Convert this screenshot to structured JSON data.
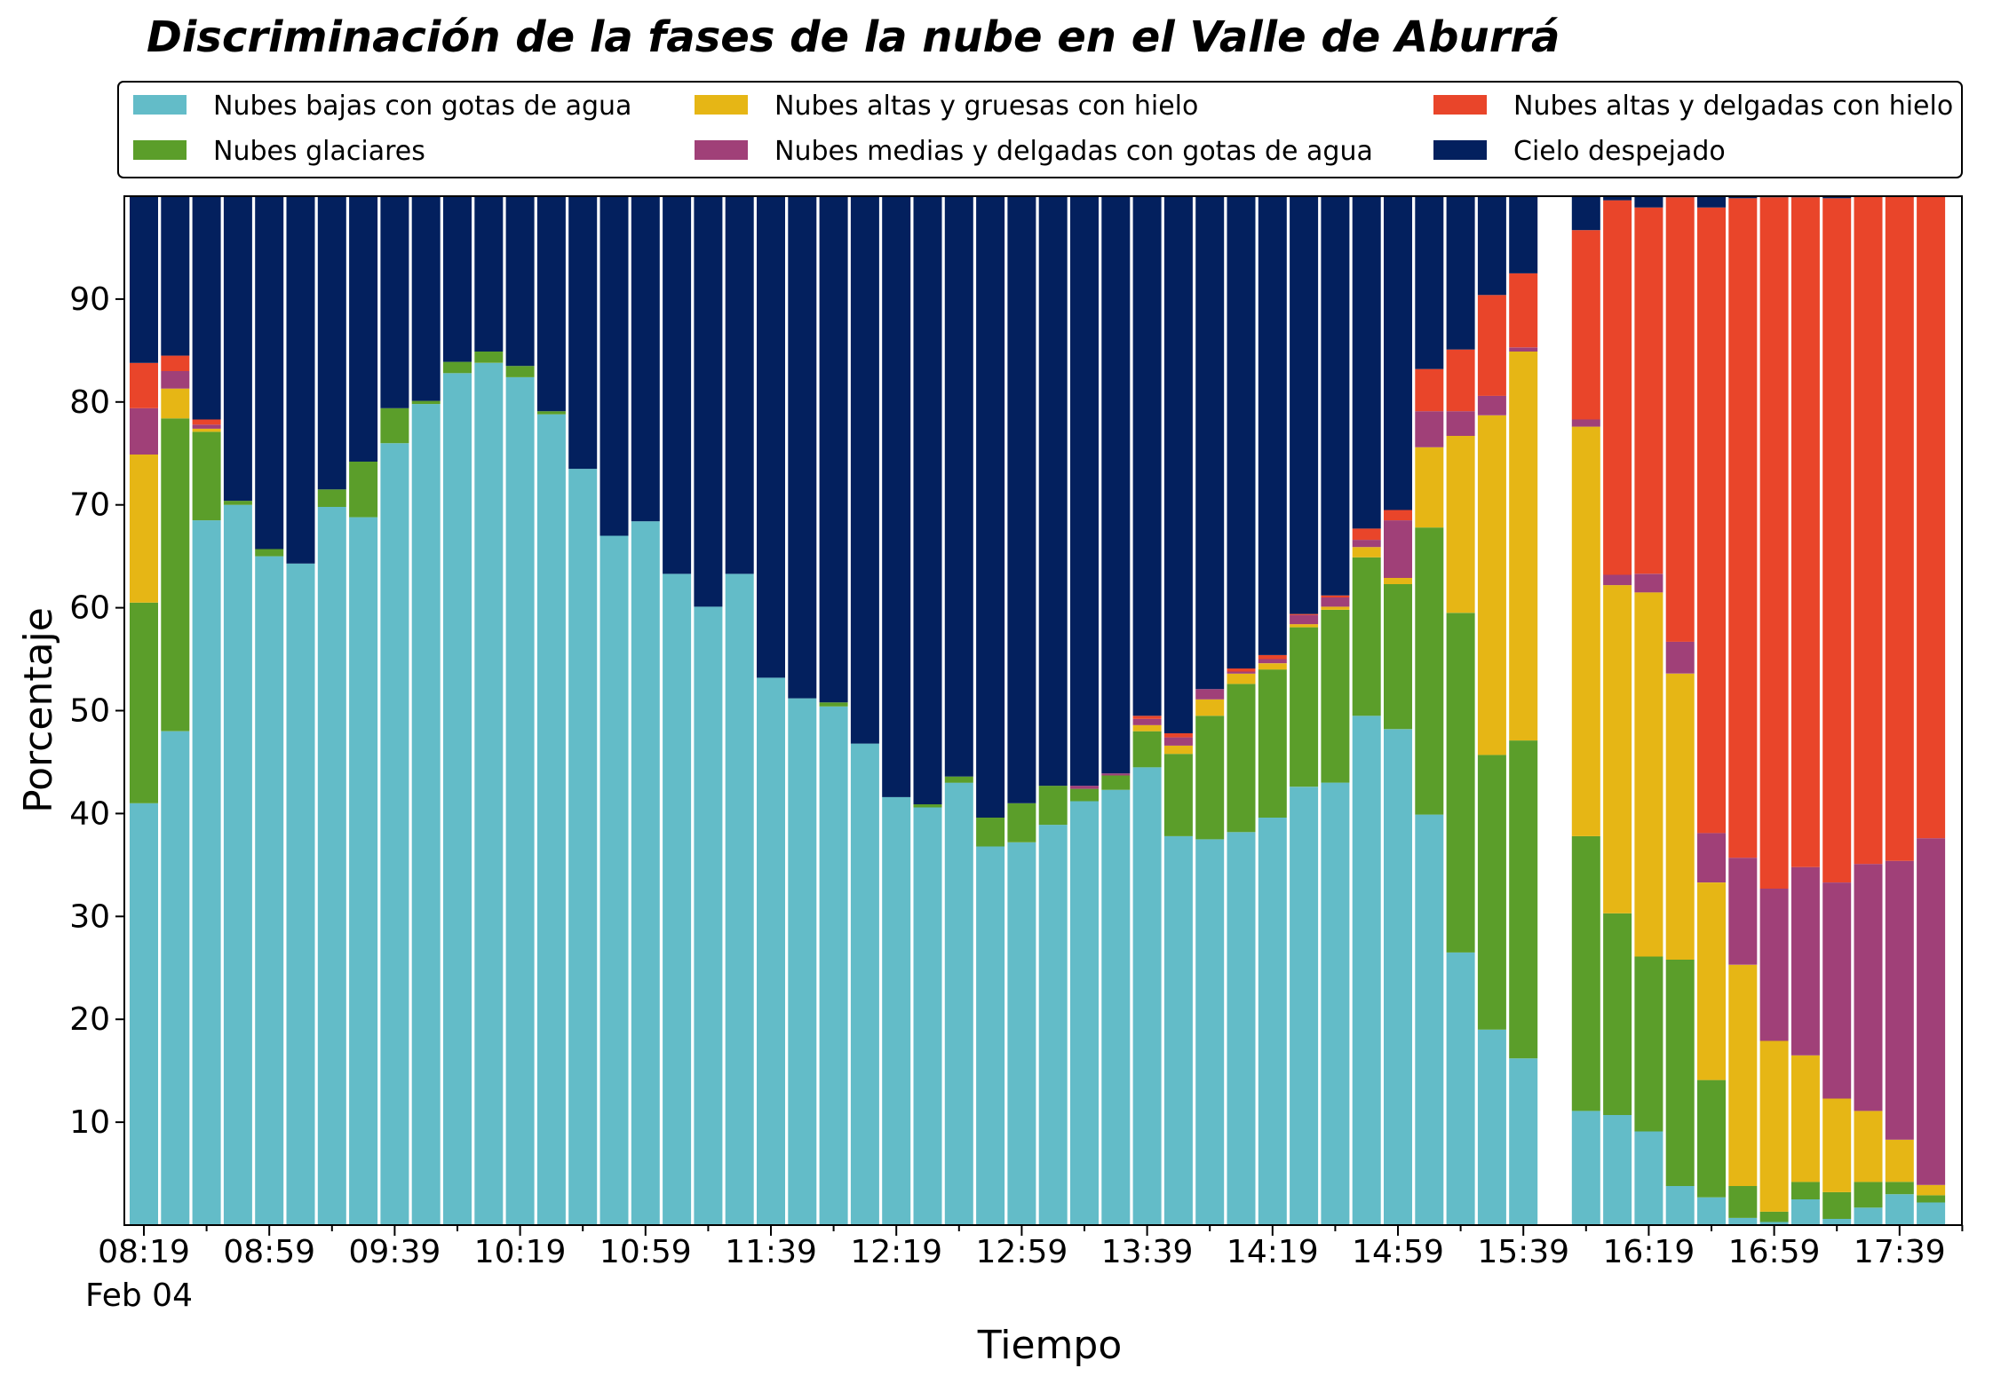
{
  "chart_data": {
    "type": "bar",
    "stacked": true,
    "title": "Discriminación de la fases de la nube en el Valle de Aburrá",
    "xlabel": "Tiempo",
    "ylabel": "Porcentaje",
    "ylim": [
      0,
      100
    ],
    "yticks": [
      10,
      20,
      30,
      40,
      50,
      60,
      70,
      80,
      90
    ],
    "xtick_labels": [
      "08:19",
      "08:59",
      "09:39",
      "10:19",
      "10:59",
      "11:39",
      "12:19",
      "12:59",
      "13:39",
      "14:19",
      "14:59",
      "15:39",
      "16:19",
      "16:59",
      "17:39"
    ],
    "date_label": "Feb 04",
    "legend_location": "top, above plot, 3 columns",
    "grid": false,
    "x_start_minute": 499,
    "x_step_minutes": 10,
    "slots": 59,
    "series": [
      {
        "name": "Nubes bajas con gotas de agua",
        "color": "#63BCC8",
        "values": [
          41,
          48,
          68.5,
          70,
          65,
          64.3,
          69.8,
          68.8,
          76,
          79.8,
          82.8,
          83.8,
          82.4,
          78.8,
          73.5,
          67,
          68.4,
          63.3,
          60.1,
          63.3,
          53.2,
          51.2,
          50.4,
          46.8,
          41.6,
          40.6,
          43,
          36.8,
          37.2,
          38.9,
          41.2,
          42.3,
          44.5,
          37.8,
          37.5,
          38.2,
          39.6,
          42.6,
          43,
          49.5,
          48.2,
          39.9,
          26.5,
          19,
          16.2,
          null,
          11.1,
          10.7,
          9.1,
          3.8,
          2.7,
          0.7,
          0.3,
          2.5,
          0.6,
          1.7,
          3,
          2.2,
          null
        ]
      },
      {
        "name": "Nubes glaciares",
        "color": "#5B9E2A",
        "values": [
          19.5,
          30.4,
          8.6,
          0.4,
          0.7,
          0,
          1.7,
          5.4,
          3.4,
          0.3,
          1.1,
          1.1,
          1.1,
          0.3,
          0,
          0,
          0,
          0,
          0,
          0,
          0,
          0,
          0.4,
          0,
          0,
          0.3,
          0.6,
          2.8,
          3.8,
          3.8,
          1.2,
          1.4,
          3.5,
          8,
          12,
          14.4,
          14.4,
          15.5,
          16.8,
          15.4,
          14.1,
          27.9,
          33,
          26.7,
          30.9,
          null,
          26.7,
          19.6,
          17,
          22,
          11.4,
          3.1,
          1,
          1.7,
          2.6,
          2.5,
          1.2,
          0.7,
          null
        ]
      },
      {
        "name": "Nubes altas y gruesas con hielo",
        "color": "#E6B615",
        "values": [
          14.4,
          2.9,
          0.3,
          0,
          0,
          0,
          0,
          0,
          0,
          0,
          0,
          0,
          0,
          0,
          0,
          0,
          0,
          0,
          0,
          0,
          0,
          0,
          0,
          0,
          0,
          0,
          0,
          0,
          0,
          0,
          0,
          0,
          0.6,
          0.8,
          1.6,
          1,
          0.6,
          0.3,
          0.3,
          1,
          0.6,
          7.8,
          17.2,
          33,
          37.8,
          null,
          39.8,
          31.9,
          35.4,
          27.8,
          19.2,
          21.5,
          16.6,
          12.3,
          9.1,
          6.9,
          4.1,
          1,
          null
        ]
      },
      {
        "name": "Nubes medias y delgadas con gotas de agua",
        "color": "#A04078",
        "values": [
          4.5,
          1.7,
          0.4,
          0,
          0,
          0,
          0,
          0,
          0,
          0,
          0,
          0,
          0,
          0,
          0,
          0,
          0,
          0,
          0,
          0,
          0,
          0,
          0,
          0,
          0,
          0,
          0,
          0,
          0,
          0,
          0.3,
          0.2,
          0.6,
          0.8,
          1,
          0.2,
          0.4,
          0.9,
          0.9,
          0.7,
          5.6,
          3.5,
          2.4,
          1.9,
          0.4,
          null,
          0.7,
          1,
          1.8,
          3.1,
          4.8,
          10.4,
          14.8,
          18.3,
          21,
          24,
          27.1,
          33.7,
          null
        ]
      },
      {
        "name": "Nubes altas y delgadas con hielo",
        "color": "#E9452A",
        "values": [
          4.4,
          1.5,
          0.5,
          0,
          0,
          0,
          0,
          0,
          0,
          0,
          0,
          0,
          0,
          0,
          0,
          0,
          0,
          0,
          0,
          0,
          0,
          0,
          0,
          0,
          0,
          0,
          0,
          0,
          0,
          0,
          0,
          0,
          0.3,
          0.4,
          0,
          0.3,
          0.4,
          0.1,
          0.2,
          1.1,
          1,
          4.1,
          6,
          9.8,
          7.2,
          null,
          18.4,
          36.4,
          35.6,
          43.2,
          60.8,
          64.1,
          67.2,
          65.1,
          66.5,
          64.9,
          64.6,
          62.4,
          null
        ]
      },
      {
        "name": "Cielo despejado",
        "color": "#03205E",
        "values": [
          16.2,
          15.5,
          21.7,
          29.6,
          34.3,
          35.7,
          28.5,
          25.8,
          20.6,
          19.9,
          16.1,
          15.1,
          16.5,
          20.9,
          26.5,
          33,
          31.6,
          36.7,
          39.9,
          36.7,
          46.8,
          48.8,
          49.2,
          53.2,
          58.4,
          59.1,
          56.4,
          60.4,
          59,
          57.3,
          57.3,
          56.1,
          50.5,
          52.2,
          47.9,
          45.9,
          44.6,
          40.6,
          38.8,
          32.3,
          30.5,
          16.8,
          14.9,
          9.6,
          7.5,
          null,
          3.3,
          0.4,
          1.1,
          0.1,
          1.1,
          0.2,
          0.1,
          0.1,
          0.2,
          0,
          0,
          0,
          null
        ]
      }
    ]
  }
}
